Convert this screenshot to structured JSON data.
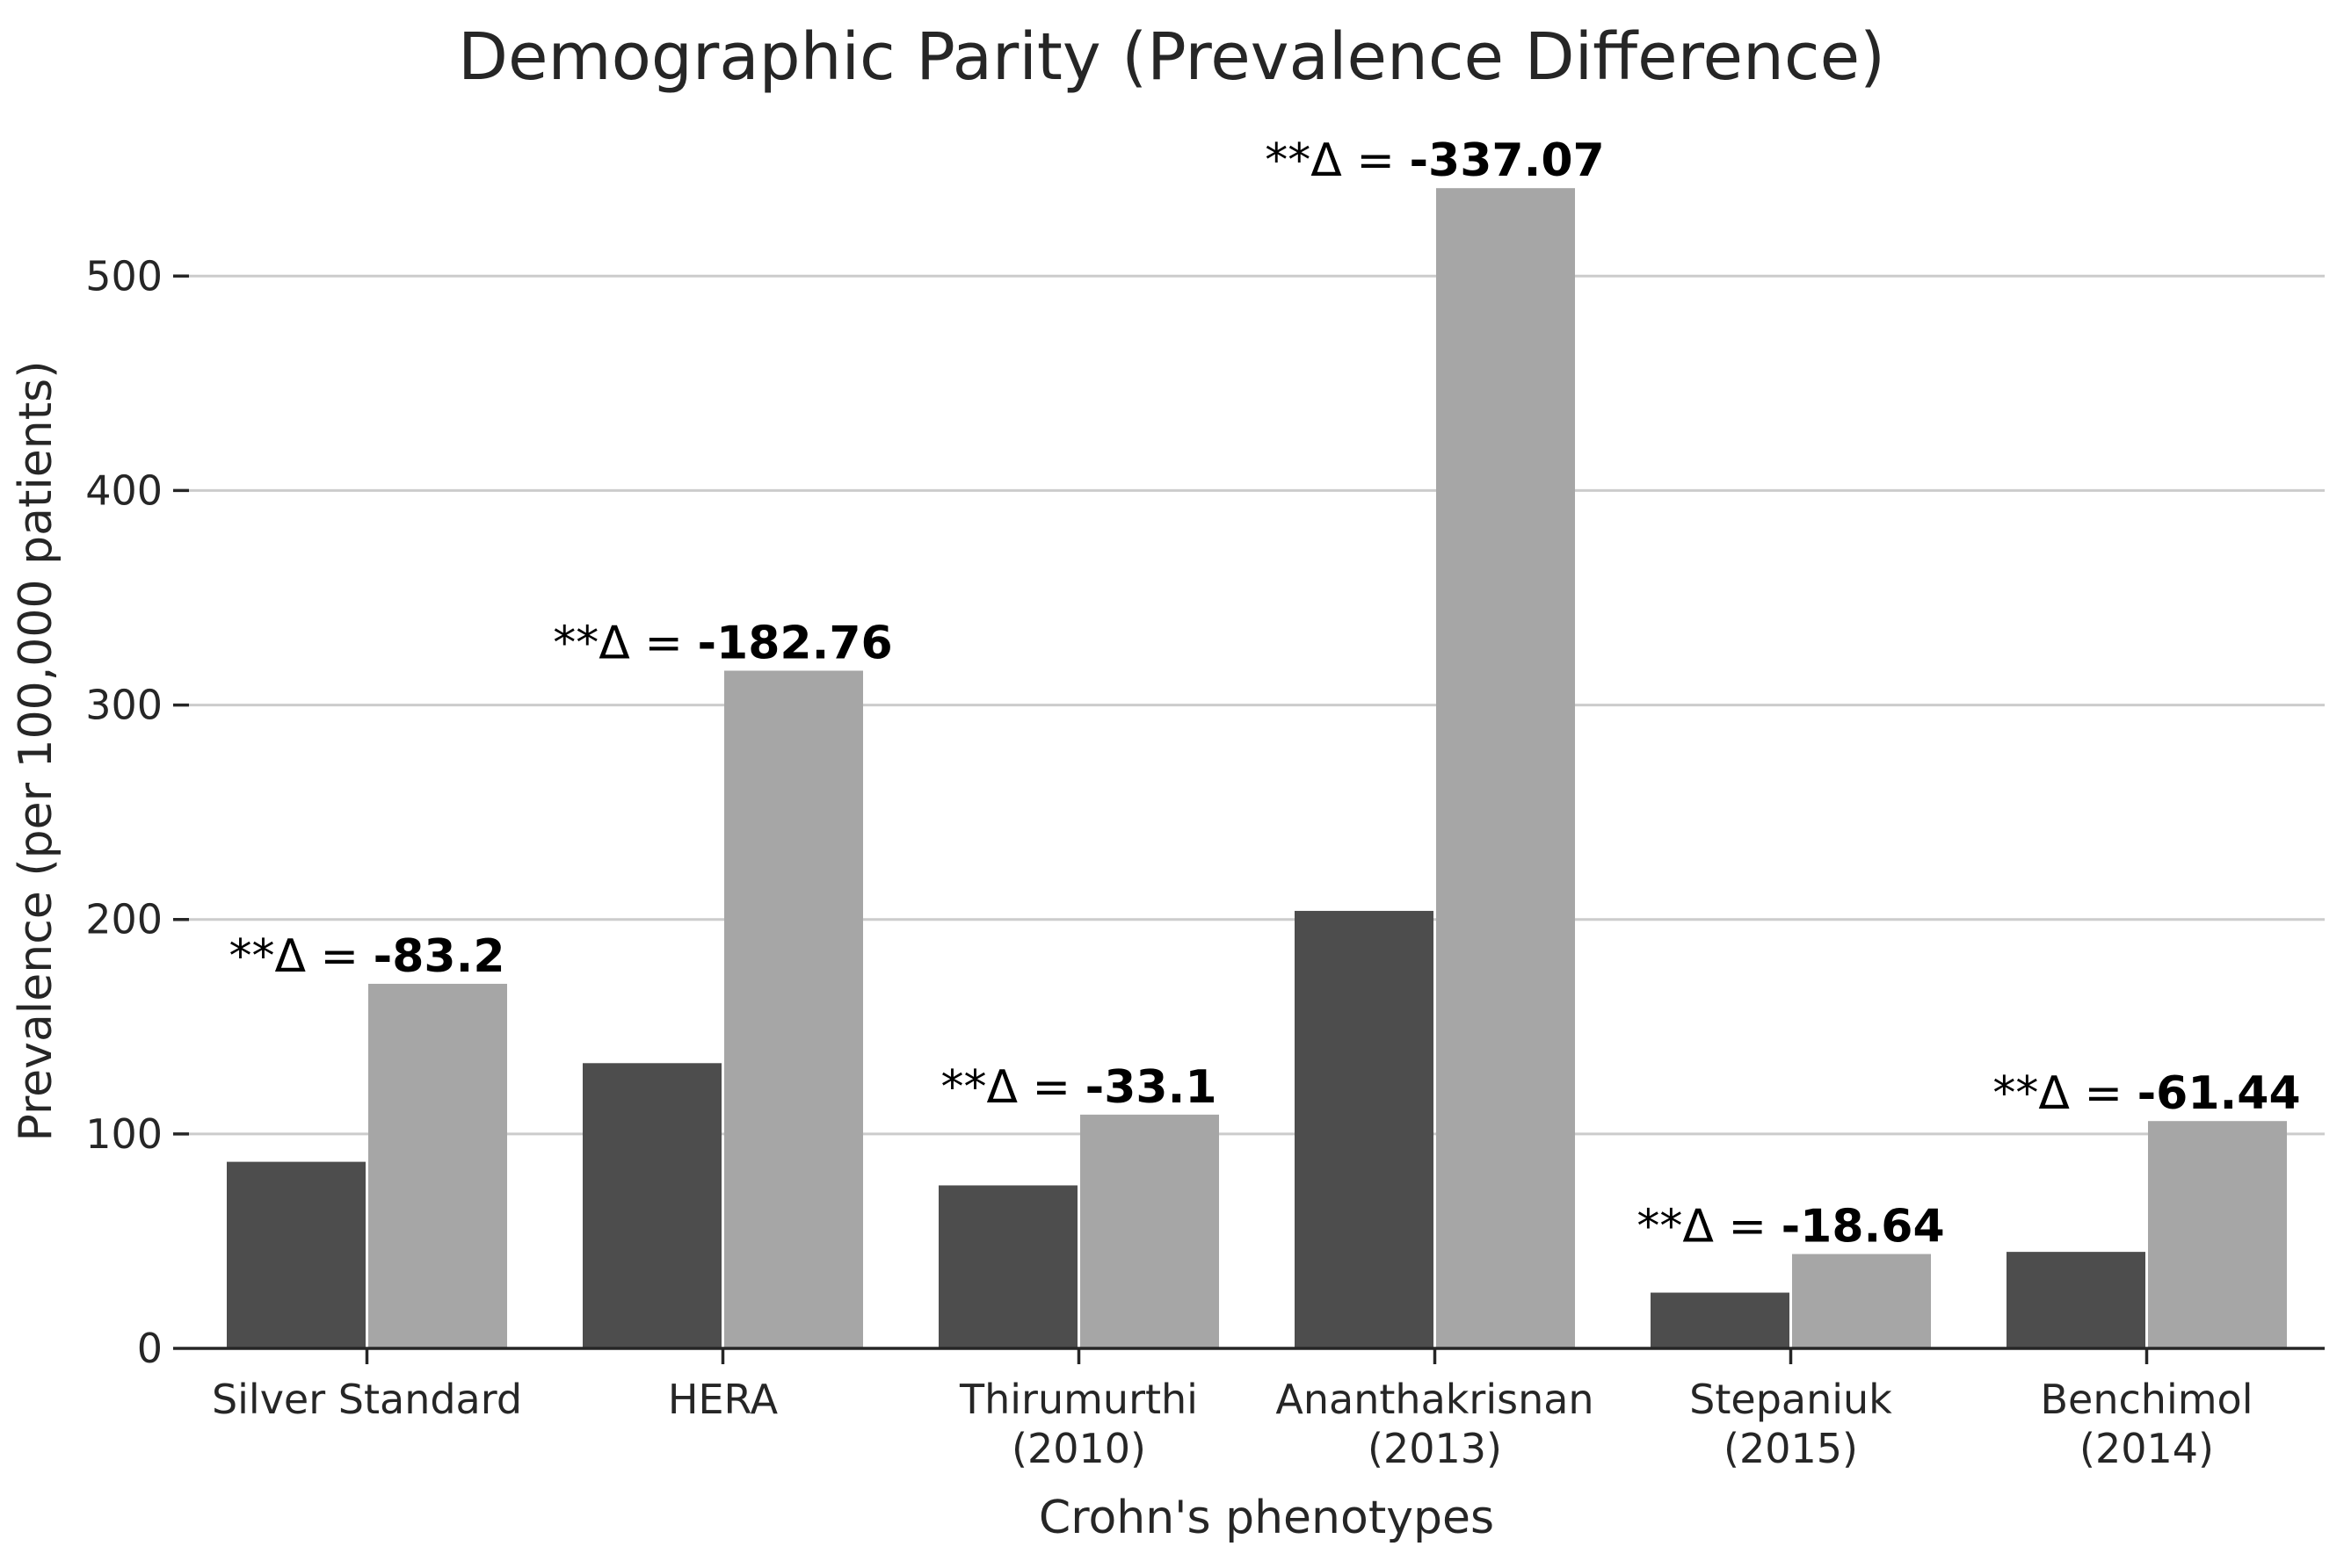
{
  "chart_data": {
    "type": "bar",
    "title": "Demographic Parity (Prevalence Difference)",
    "xlabel": "Crohn's phenotypes",
    "ylabel": "Prevalence (per 100,000 patients)",
    "ylim": [
      0,
      555
    ],
    "yticks": [
      0,
      100,
      200,
      300,
      400,
      500
    ],
    "grid": "horizontal",
    "categories": [
      [
        "Silver Standard"
      ],
      [
        "HERA"
      ],
      [
        "Thirumurthi",
        "(2010)"
      ],
      [
        "Ananthakrisnan",
        "(2013)"
      ],
      [
        "Stepaniuk",
        "(2015)"
      ],
      [
        "Benchimol",
        "(2014)"
      ]
    ],
    "series": [
      {
        "values": [
          87,
          133,
          76,
          204,
          26,
          45
        ],
        "color": "#4d4d4d"
      },
      {
        "values": [
          170,
          316,
          109,
          541,
          44,
          106
        ],
        "color": "#a6a6a6"
      }
    ],
    "annotations": [
      {
        "prefix": "**Δ = ",
        "value": "-83.2"
      },
      {
        "prefix": "**Δ = ",
        "value": "-182.76"
      },
      {
        "prefix": "**Δ = ",
        "value": "-33.1"
      },
      {
        "prefix": "**Δ = ",
        "value": "-337.07"
      },
      {
        "prefix": "**Δ = ",
        "value": "-18.64"
      },
      {
        "prefix": "**Δ = ",
        "value": "-61.44"
      }
    ]
  }
}
